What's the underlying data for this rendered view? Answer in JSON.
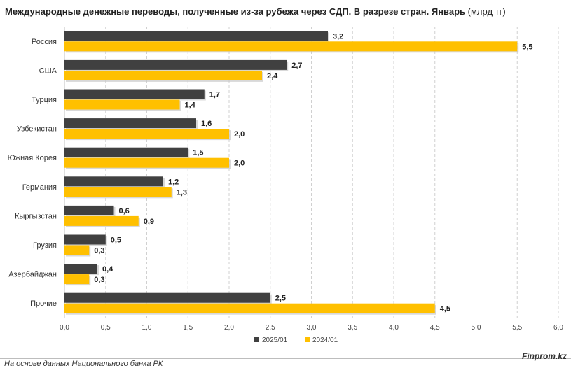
{
  "title": {
    "main": "Международные денежные переводы, полученные из-за рубежа через СДП. В разрезе стран. Январь",
    "unit": "(млрд тг)"
  },
  "footer": {
    "source": "На основе данных Национального банка РК",
    "brand": "Finprom.kz"
  },
  "colors": {
    "series_2025": "#404040",
    "series_2024": "#ffc000",
    "grid": "#d0d0d0"
  },
  "chart_data": {
    "type": "bar",
    "orientation": "horizontal",
    "categories": [
      "Россия",
      "США",
      "Турция",
      "Узбекистан",
      "Южная Корея",
      "Германия",
      "Кыргызстан",
      "Грузия",
      "Азербайджан",
      "Прочие"
    ],
    "series": [
      {
        "name": "2025/01",
        "values": [
          3.2,
          2.7,
          1.7,
          1.6,
          1.5,
          1.2,
          0.6,
          0.5,
          0.4,
          2.5
        ],
        "labels": [
          "3,2",
          "2,7",
          "1,7",
          "1,6",
          "1,5",
          "1,2",
          "0,6",
          "0,5",
          "0,4",
          "2,5"
        ]
      },
      {
        "name": "2024/01",
        "values": [
          5.5,
          2.4,
          1.4,
          2.0,
          2.0,
          1.3,
          0.9,
          0.3,
          0.3,
          4.5
        ],
        "labels": [
          "5,5",
          "2,4",
          "1,4",
          "2,0",
          "2,0",
          "1,3",
          "0,9",
          "0,3",
          "0,3",
          "4,5"
        ]
      }
    ],
    "xlim": [
      0,
      6
    ],
    "xticks": [
      0,
      0.5,
      1,
      1.5,
      2,
      2.5,
      3,
      3.5,
      4,
      4.5,
      5,
      5.5,
      6
    ],
    "xtick_labels": [
      "0,0",
      "0,5",
      "1,0",
      "1,5",
      "2,0",
      "2,5",
      "3,0",
      "3,5",
      "4,0",
      "4,5",
      "5,0",
      "5,5",
      "6,0"
    ],
    "grid": "vertical dashed",
    "legend": "bottom"
  }
}
